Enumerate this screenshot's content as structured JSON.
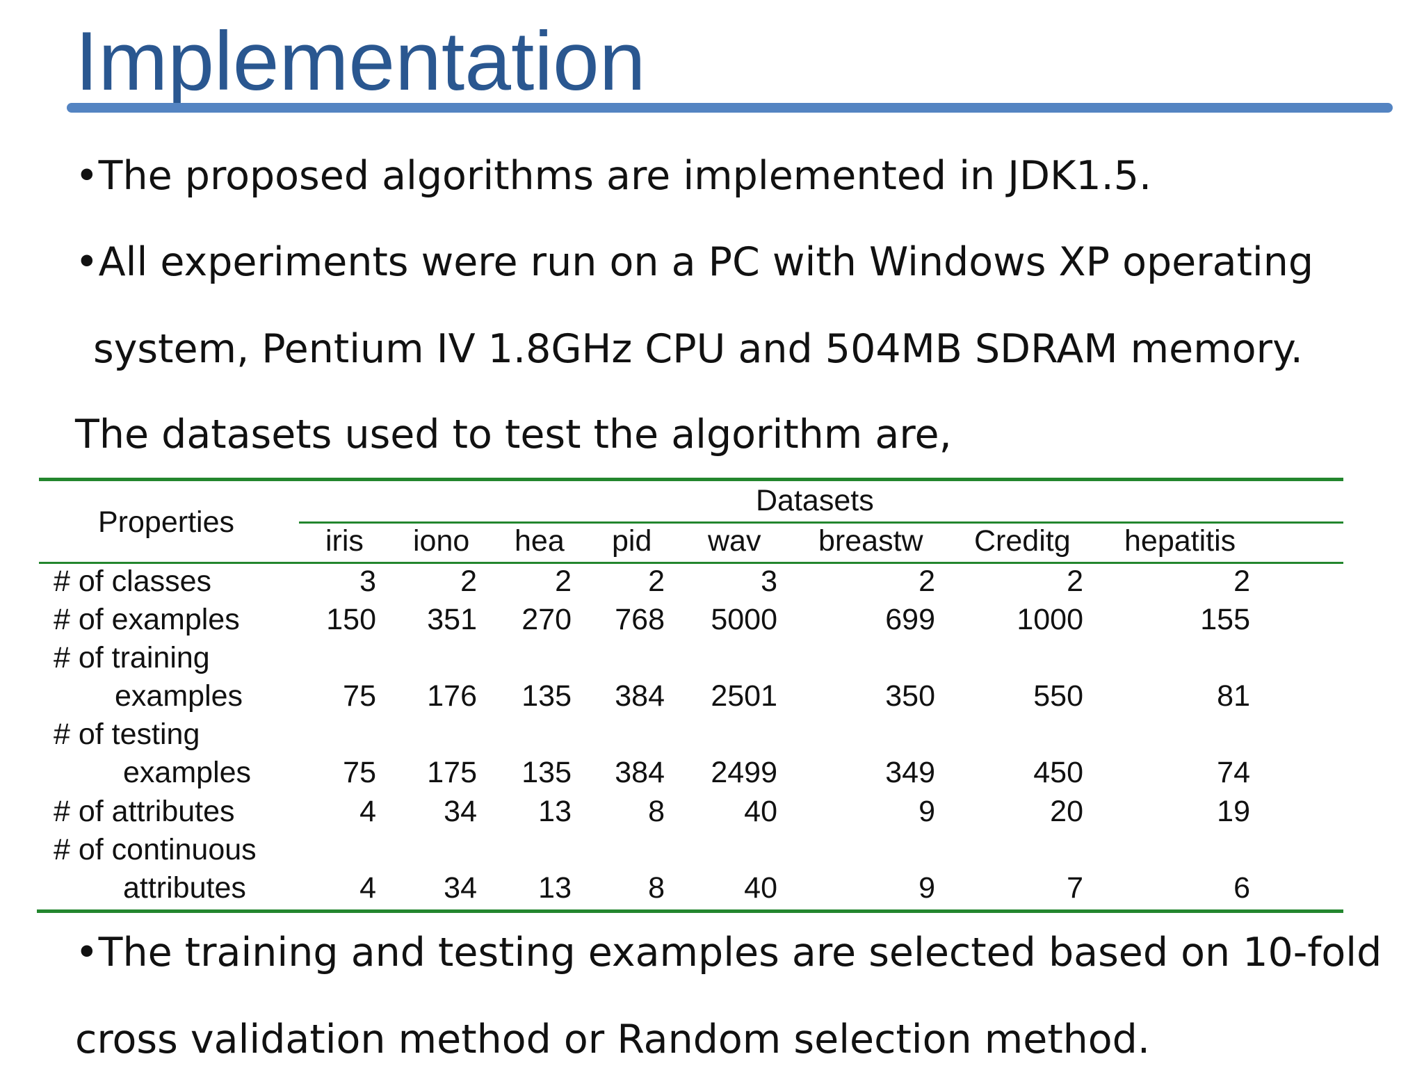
{
  "slide": {
    "title": "Implementation",
    "bullet_glyph": "•",
    "bullet1": "The proposed algorithms are implemented in JDK1.5.",
    "bullet2_line1": "All experiments were run on a PC with Windows XP operating",
    "bullet2_line2": "system, Pentium IV 1.8GHz CPU and 504MB SDRAM memory.",
    "intro": "The datasets used to test the algorithm are,",
    "bullet3_line1": "The training and testing examples are selected based on 10-fold",
    "bullet3_line2": "cross validation method or Random selection method."
  },
  "table": {
    "properties_header": "Properties",
    "datasets_header": "Datasets",
    "columns": [
      "iris",
      "iono",
      "hea",
      "pid",
      "wav",
      "breastw",
      "Creditg",
      "hepatitis"
    ],
    "rows": [
      {
        "label_line1": "# of classes",
        "label_line2": "",
        "values": [
          "3",
          "2",
          "2",
          "2",
          "3",
          "2",
          "2",
          "2"
        ]
      },
      {
        "label_line1": "# of examples",
        "label_line2": "",
        "values": [
          "150",
          "351",
          "270",
          "768",
          "5000",
          "699",
          "1000",
          "155"
        ]
      },
      {
        "label_line1": "# of training",
        "label_line2": "examples",
        "values": [
          "75",
          "176",
          "135",
          "384",
          "2501",
          "350",
          "550",
          "81"
        ]
      },
      {
        "label_line1": "# of testing",
        "label_line2": "examples",
        "values": [
          "75",
          "175",
          "135",
          "384",
          "2499",
          "349",
          "450",
          "74"
        ]
      },
      {
        "label_line1": "# of attributes",
        "label_line2": "",
        "values": [
          "4",
          "34",
          "13",
          "8",
          "40",
          "9",
          "20",
          "19"
        ]
      },
      {
        "label_line1": "# of continuous",
        "label_line2": "attributes",
        "values": [
          "4",
          "34",
          "13",
          "8",
          "40",
          "9",
          "7",
          "6"
        ]
      }
    ]
  },
  "colors": {
    "title": "#2a5790",
    "title_rule": "#5484c2",
    "table_rules": "#23862e",
    "text": "#111111"
  }
}
